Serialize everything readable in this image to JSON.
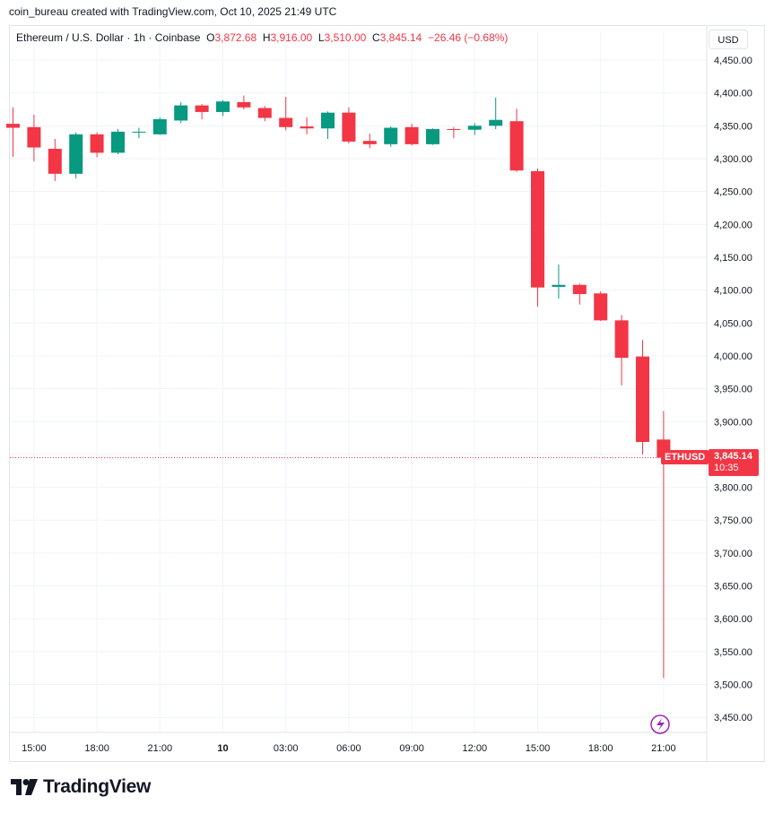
{
  "credit": "coin_bureau created with TradingView.com, Oct 10, 2025 21:49 UTC",
  "legend": {
    "symbol": "Ethereum / U.S. Dollar · 1h · Coinbase",
    "o_label": "O",
    "o_value": "3,872.68",
    "h_label": "H",
    "h_value": "3,916.00",
    "l_label": "L",
    "l_value": "3,510.00",
    "c_label": "C",
    "c_value": "3,845.14",
    "change": "−26.46 (−0.68%)"
  },
  "currency": "USD",
  "last_price": {
    "symbol": "ETHUSD",
    "price": "3,845.14",
    "countdown": "10:35"
  },
  "brand": "TradingView",
  "colors": {
    "up": "#089981",
    "down": "#f23645",
    "grid": "#f0f3fa",
    "text": "#131722"
  },
  "chart_data": {
    "type": "candlestick",
    "ylim": [
      3420,
      4480
    ],
    "y_ticks": [
      "4,450.00",
      "4,400.00",
      "4,350.00",
      "4,300.00",
      "4,250.00",
      "4,200.00",
      "4,150.00",
      "4,100.00",
      "4,050.00",
      "4,000.00",
      "3,950.00",
      "3,900.00",
      "3,850.00",
      "3,800.00",
      "3,750.00",
      "3,700.00",
      "3,650.00",
      "3,600.00",
      "3,550.00",
      "3,500.00",
      "3,450.00"
    ],
    "x_ticks": [
      {
        "label": "15:00",
        "index": 1
      },
      {
        "label": "18:00",
        "index": 4
      },
      {
        "label": "21:00",
        "index": 7
      },
      {
        "label": "10",
        "index": 10
      },
      {
        "label": "03:00",
        "index": 13
      },
      {
        "label": "06:00",
        "index": 16
      },
      {
        "label": "09:00",
        "index": 19
      },
      {
        "label": "12:00",
        "index": 22
      },
      {
        "label": "15:00",
        "index": 25
      },
      {
        "label": "18:00",
        "index": 28
      },
      {
        "label": "21:00",
        "index": 31
      }
    ],
    "candles": [
      {
        "o": 4353,
        "h": 4378,
        "l": 4303,
        "c": 4347
      },
      {
        "o": 4348,
        "h": 4367,
        "l": 4296,
        "c": 4317
      },
      {
        "o": 4315,
        "h": 4330,
        "l": 4266,
        "c": 4277
      },
      {
        "o": 4277,
        "h": 4340,
        "l": 4270,
        "c": 4337
      },
      {
        "o": 4337,
        "h": 4340,
        "l": 4302,
        "c": 4309
      },
      {
        "o": 4309,
        "h": 4345,
        "l": 4307,
        "c": 4341
      },
      {
        "o": 4340,
        "h": 4347,
        "l": 4331,
        "c": 4341
      },
      {
        "o": 4337,
        "h": 4363,
        "l": 4336,
        "c": 4360
      },
      {
        "o": 4358,
        "h": 4386,
        "l": 4354,
        "c": 4381
      },
      {
        "o": 4381,
        "h": 4383,
        "l": 4360,
        "c": 4371
      },
      {
        "o": 4371,
        "h": 4389,
        "l": 4365,
        "c": 4387
      },
      {
        "o": 4386,
        "h": 4396,
        "l": 4375,
        "c": 4378
      },
      {
        "o": 4377,
        "h": 4380,
        "l": 4357,
        "c": 4362
      },
      {
        "o": 4362,
        "h": 4394,
        "l": 4343,
        "c": 4348
      },
      {
        "o": 4349,
        "h": 4363,
        "l": 4337,
        "c": 4346
      },
      {
        "o": 4346,
        "h": 4372,
        "l": 4330,
        "c": 4370
      },
      {
        "o": 4370,
        "h": 4378,
        "l": 4323,
        "c": 4326
      },
      {
        "o": 4327,
        "h": 4338,
        "l": 4316,
        "c": 4322
      },
      {
        "o": 4322,
        "h": 4349,
        "l": 4318,
        "c": 4347
      },
      {
        "o": 4348,
        "h": 4353,
        "l": 4320,
        "c": 4322
      },
      {
        "o": 4322,
        "h": 4346,
        "l": 4321,
        "c": 4345
      },
      {
        "o": 4345,
        "h": 4348,
        "l": 4331,
        "c": 4344
      },
      {
        "o": 4344,
        "h": 4354,
        "l": 4336,
        "c": 4350
      },
      {
        "o": 4350,
        "h": 4393,
        "l": 4345,
        "c": 4359
      },
      {
        "o": 4357,
        "h": 4376,
        "l": 4280,
        "c": 4282
      },
      {
        "o": 4281,
        "h": 4285,
        "l": 4075,
        "c": 4104
      },
      {
        "o": 4105,
        "h": 4139,
        "l": 4087,
        "c": 4108
      },
      {
        "o": 4108,
        "h": 4110,
        "l": 4078,
        "c": 4094
      },
      {
        "o": 4095,
        "h": 4098,
        "l": 4053,
        "c": 4054
      },
      {
        "o": 4054,
        "h": 4062,
        "l": 3955,
        "c": 3997
      },
      {
        "o": 3999,
        "h": 4024,
        "l": 3850,
        "c": 3869
      },
      {
        "o": 3872.68,
        "h": 3916,
        "l": 3510,
        "c": 3845.14
      }
    ]
  }
}
